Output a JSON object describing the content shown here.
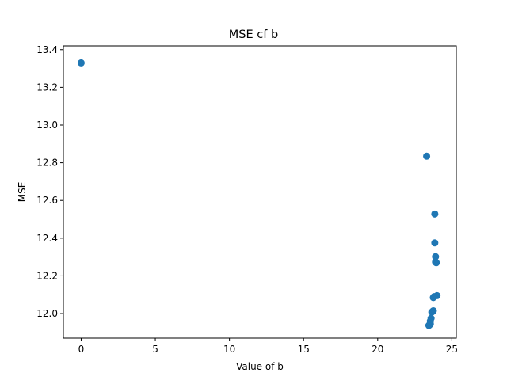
{
  "chart_data": {
    "type": "scatter",
    "title": "MSE cf b",
    "xlabel": "Value of b",
    "ylabel": "MSE",
    "xlim": [
      -1.2,
      25.3
    ],
    "ylim": [
      11.87,
      13.42
    ],
    "xticks": [
      0,
      5,
      10,
      15,
      20,
      25
    ],
    "xtick_labels": [
      "0",
      "5",
      "10",
      "15",
      "20",
      "25"
    ],
    "yticks": [
      12.0,
      12.2,
      12.4,
      12.6,
      12.8,
      13.0,
      13.2,
      13.4
    ],
    "ytick_labels": [
      "12.0",
      "12.2",
      "12.4",
      "12.6",
      "12.8",
      "13.0",
      "13.2",
      "13.4"
    ],
    "grid": false,
    "marker_color": "#1f77b4",
    "series": [
      {
        "points": [
          {
            "x": 0.0,
            "y": 13.33
          },
          {
            "x": 23.3,
            "y": 12.835
          },
          {
            "x": 23.85,
            "y": 12.528
          },
          {
            "x": 23.85,
            "y": 12.375
          },
          {
            "x": 23.9,
            "y": 12.302
          },
          {
            "x": 23.9,
            "y": 12.273
          },
          {
            "x": 23.95,
            "y": 12.27
          },
          {
            "x": 24.0,
            "y": 12.095
          },
          {
            "x": 23.8,
            "y": 12.09
          },
          {
            "x": 23.75,
            "y": 12.085
          },
          {
            "x": 23.75,
            "y": 12.015
          },
          {
            "x": 23.65,
            "y": 12.008
          },
          {
            "x": 23.6,
            "y": 11.975
          },
          {
            "x": 23.55,
            "y": 11.96
          },
          {
            "x": 23.55,
            "y": 11.945
          },
          {
            "x": 23.5,
            "y": 11.94
          },
          {
            "x": 23.45,
            "y": 11.937
          }
        ]
      }
    ]
  }
}
